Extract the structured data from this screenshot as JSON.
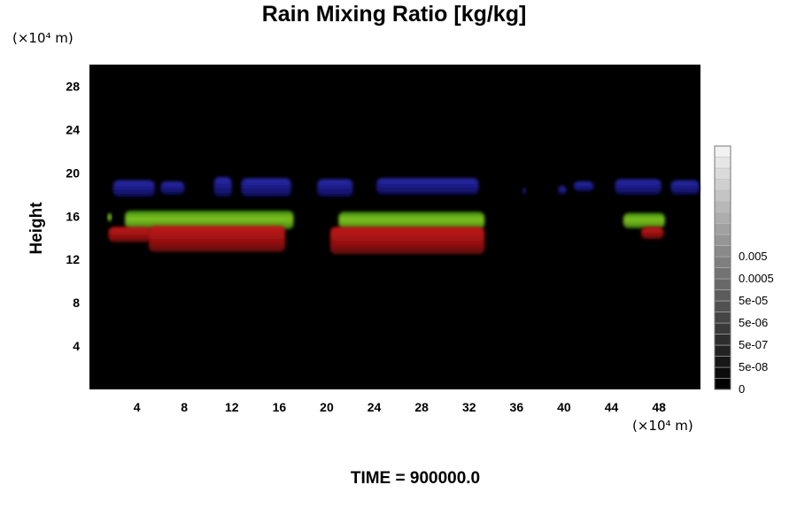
{
  "chart_data": {
    "type": "heatmap",
    "title": "Rain Mixing Ratio [kg/kg]",
    "xlabel": "",
    "ylabel": "Height",
    "x_unit": "(×10⁴ m)",
    "y_unit": "(×10⁴ m)",
    "xlim": [
      0,
      51.5
    ],
    "ylim": [
      0,
      30
    ],
    "x_ticks": [
      4,
      8,
      12,
      16,
      20,
      24,
      28,
      32,
      36,
      40,
      44,
      48
    ],
    "y_ticks": [
      4,
      8,
      12,
      16,
      20,
      24,
      28
    ],
    "background": "#000000",
    "colorbar": {
      "levels": 22,
      "tick_labels": [
        "0",
        "5e-08",
        "5e-07",
        "5e-06",
        "5e-05",
        "0.0005",
        "0.005"
      ],
      "color_low": "#000000",
      "color_high": "#f2f2f2"
    },
    "features": [
      {
        "layer": "upper",
        "color": "#1a1a8c",
        "segments": [
          [
            2,
            5.5,
            17.8,
            19.3
          ],
          [
            6,
            8,
            18.0,
            19.2
          ],
          [
            10.5,
            12,
            17.8,
            19.6
          ],
          [
            12.8,
            17,
            17.8,
            19.5
          ],
          [
            19.2,
            22.2,
            17.8,
            19.4
          ],
          [
            24.2,
            32.8,
            18.0,
            19.5
          ],
          [
            36.5,
            36.8,
            18.0,
            18.6
          ],
          [
            39.5,
            40.2,
            18.0,
            18.8
          ],
          [
            40.8,
            42.5,
            18.3,
            19.2
          ],
          [
            44.3,
            48.2,
            18.0,
            19.4
          ],
          [
            49,
            51.4,
            18.0,
            19.3
          ]
        ]
      },
      {
        "layer": "middle",
        "color": "#58a816",
        "segments": [
          [
            1.5,
            1.9,
            15.5,
            16.3
          ],
          [
            3,
            17.2,
            14.8,
            16.5
          ],
          [
            21,
            33.3,
            14.8,
            16.4
          ],
          [
            45,
            48.5,
            14.9,
            16.3
          ]
        ]
      },
      {
        "layer": "lower",
        "color": "#b01010",
        "segments": [
          [
            1.6,
            5.2,
            13.6,
            15.0
          ],
          [
            5,
            16.5,
            12.7,
            15.1
          ],
          [
            20.3,
            33.3,
            12.5,
            15.0
          ],
          [
            46.5,
            48.4,
            13.9,
            15.0
          ]
        ]
      }
    ]
  },
  "footer": {
    "time_label": "TIME = 900000.0"
  }
}
